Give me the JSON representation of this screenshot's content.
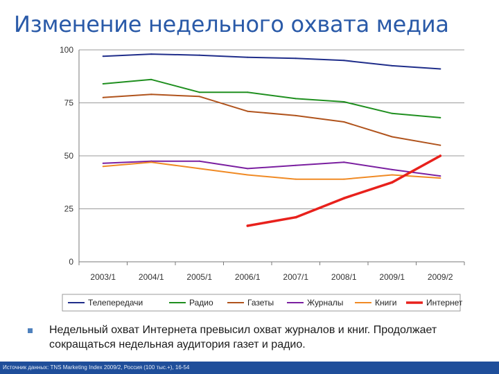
{
  "slide": {
    "title": "Изменение недельного охвата медиа",
    "bullet": "Недельный охват Интернета превысил охват журналов и книг. Продолжает сокращаться недельная аудитория газет и радио.",
    "footer": "Источник данных: TNS Marketing Index 2009/2, Россия (100 тыс.+), 16-54"
  },
  "chart_data": {
    "type": "line",
    "title": "",
    "xlabel": "",
    "ylabel": "",
    "ylim": [
      0,
      100
    ],
    "yticks": [
      0,
      25,
      50,
      75,
      100
    ],
    "grid": true,
    "legend_position": "bottom",
    "x": [
      "2003/1",
      "2004/1",
      "2005/1",
      "2006/1",
      "2007/1",
      "2008/1",
      "2009/1",
      "2009/2"
    ],
    "series": [
      {
        "name": "Телепередачи",
        "color": "#1f2d8a",
        "width": 2,
        "values": [
          97,
          98,
          97.5,
          96.5,
          96,
          95,
          92.5,
          91
        ]
      },
      {
        "name": "Радио",
        "color": "#1f8f1f",
        "width": 2,
        "values": [
          84,
          86,
          80,
          80,
          77,
          75.5,
          70,
          68
        ]
      },
      {
        "name": "Газеты",
        "color": "#b0531c",
        "width": 2,
        "values": [
          77.5,
          79,
          78,
          71,
          69,
          66,
          59,
          55
        ]
      },
      {
        "name": "Журналы",
        "color": "#7a1fa0",
        "width": 2,
        "values": [
          46.5,
          47.5,
          47.5,
          44,
          45.5,
          47,
          43.5,
          40.5
        ]
      },
      {
        "name": "Книги",
        "color": "#f08a24",
        "width": 2,
        "values": [
          45,
          47,
          44,
          41,
          39,
          39,
          41,
          39.5
        ]
      },
      {
        "name": "Интернет",
        "color": "#e8211c",
        "width": 3.5,
        "values": [
          null,
          null,
          null,
          17,
          21,
          30,
          37.5,
          50
        ]
      }
    ]
  }
}
